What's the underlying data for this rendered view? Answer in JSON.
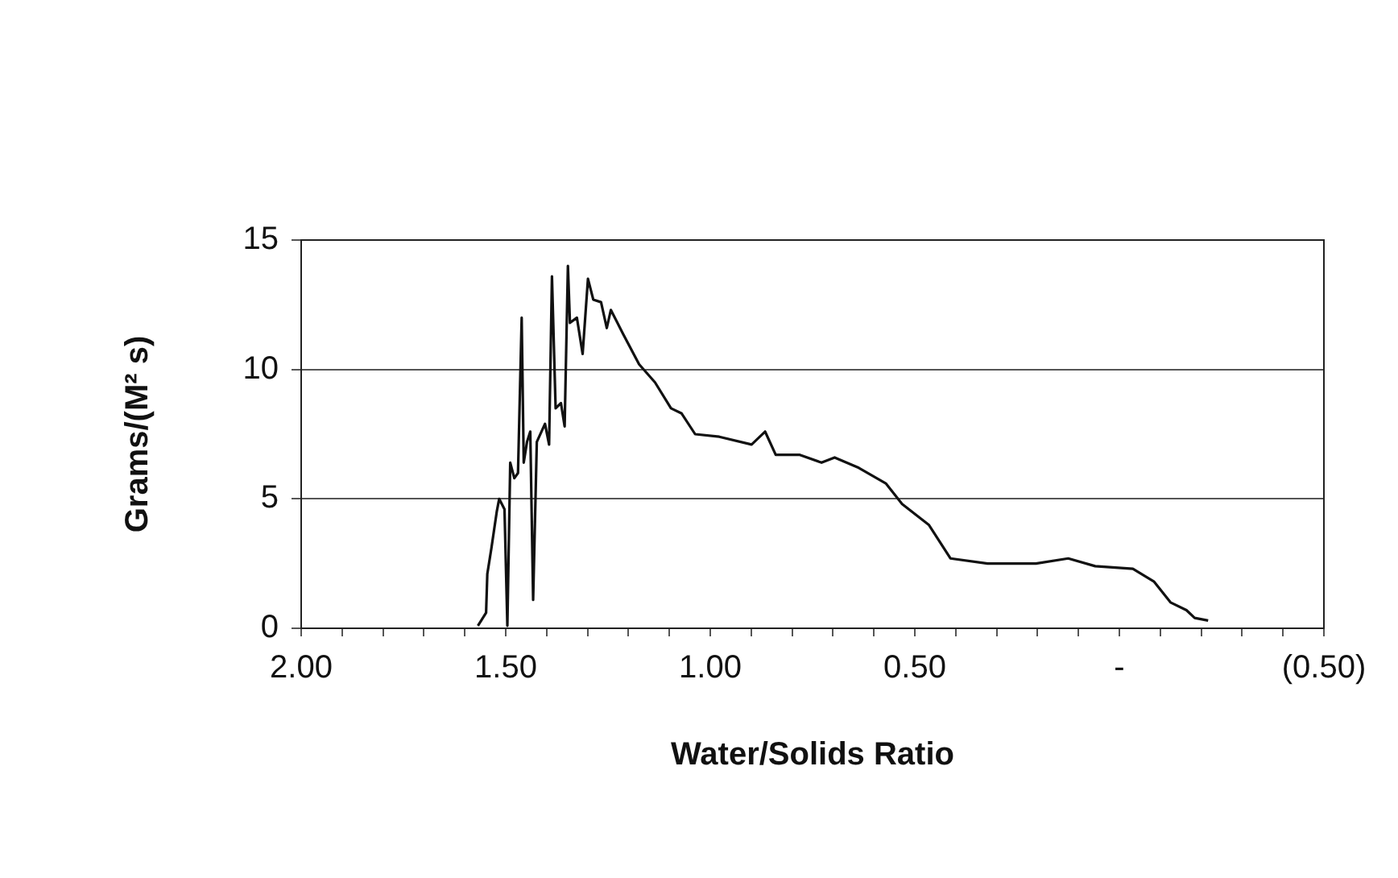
{
  "chart_data": {
    "type": "line",
    "xlabel": "Water/Solids Ratio",
    "ylabel": "Grams/(M² s)",
    "xlim": [
      2.0,
      -0.5
    ],
    "xticks": [
      {
        "value": 2.0,
        "label": "2.00"
      },
      {
        "value": 1.9,
        "label": null
      },
      {
        "value": 1.8,
        "label": null
      },
      {
        "value": 1.7,
        "label": null
      },
      {
        "value": 1.6,
        "label": null
      },
      {
        "value": 1.5,
        "label": "1.50"
      },
      {
        "value": 1.4,
        "label": null
      },
      {
        "value": 1.3,
        "label": null
      },
      {
        "value": 1.2,
        "label": null
      },
      {
        "value": 1.1,
        "label": null
      },
      {
        "value": 1.0,
        "label": "1.00"
      },
      {
        "value": 0.9,
        "label": null
      },
      {
        "value": 0.8,
        "label": null
      },
      {
        "value": 0.7,
        "label": null
      },
      {
        "value": 0.6,
        "label": null
      },
      {
        "value": 0.5,
        "label": "0.50"
      },
      {
        "value": 0.4,
        "label": null
      },
      {
        "value": 0.3,
        "label": null
      },
      {
        "value": 0.2,
        "label": null
      },
      {
        "value": 0.1,
        "label": null
      },
      {
        "value": 0,
        "label": "-"
      },
      {
        "value": -0.1,
        "label": null
      },
      {
        "value": -0.2,
        "label": null
      },
      {
        "value": -0.3,
        "label": null
      },
      {
        "value": -0.4,
        "label": null
      },
      {
        "value": -0.5,
        "label": "(0.50)"
      }
    ],
    "ylim": [
      0,
      15
    ],
    "yticks": [
      0,
      5,
      10,
      15
    ],
    "grid": "y",
    "legend": false,
    "marker": "none",
    "line_style": "solid",
    "series": [
      {
        "color": "#111111",
        "x": [
          1.568,
          1.548,
          1.545,
          1.535,
          1.522,
          1.516,
          1.503,
          1.496,
          1.489,
          1.479,
          1.47,
          1.461,
          1.456,
          1.448,
          1.44,
          1.433,
          1.424,
          1.404,
          1.394,
          1.387,
          1.378,
          1.365,
          1.356,
          1.348,
          1.343,
          1.326,
          1.312,
          1.299,
          1.286,
          1.267,
          1.253,
          1.243,
          1.214,
          1.174,
          1.135,
          1.096,
          1.07,
          1.037,
          0.978,
          0.899,
          0.866,
          0.84,
          0.781,
          0.728,
          0.696,
          0.637,
          0.571,
          0.531,
          0.466,
          0.413,
          0.322,
          0.204,
          0.125,
          0.059,
          -0.033,
          -0.085,
          -0.125,
          -0.164,
          -0.184,
          -0.217
        ],
        "values": [
          0.1,
          0.6,
          2.1,
          3.1,
          4.5,
          5.0,
          4.6,
          0.1,
          6.4,
          5.8,
          6.0,
          12.0,
          6.4,
          7.2,
          7.6,
          1.1,
          7.2,
          7.9,
          7.1,
          13.6,
          8.5,
          8.7,
          7.8,
          14.0,
          11.8,
          12.0,
          10.6,
          13.5,
          12.7,
          12.6,
          11.6,
          12.3,
          11.4,
          10.2,
          9.5,
          8.5,
          8.3,
          7.5,
          7.4,
          7.1,
          7.6,
          6.7,
          6.7,
          6.4,
          6.6,
          6.2,
          5.6,
          4.8,
          4.0,
          2.7,
          2.5,
          2.5,
          2.7,
          2.4,
          2.3,
          1.8,
          1.0,
          0.7,
          0.4,
          0.3
        ]
      }
    ]
  }
}
